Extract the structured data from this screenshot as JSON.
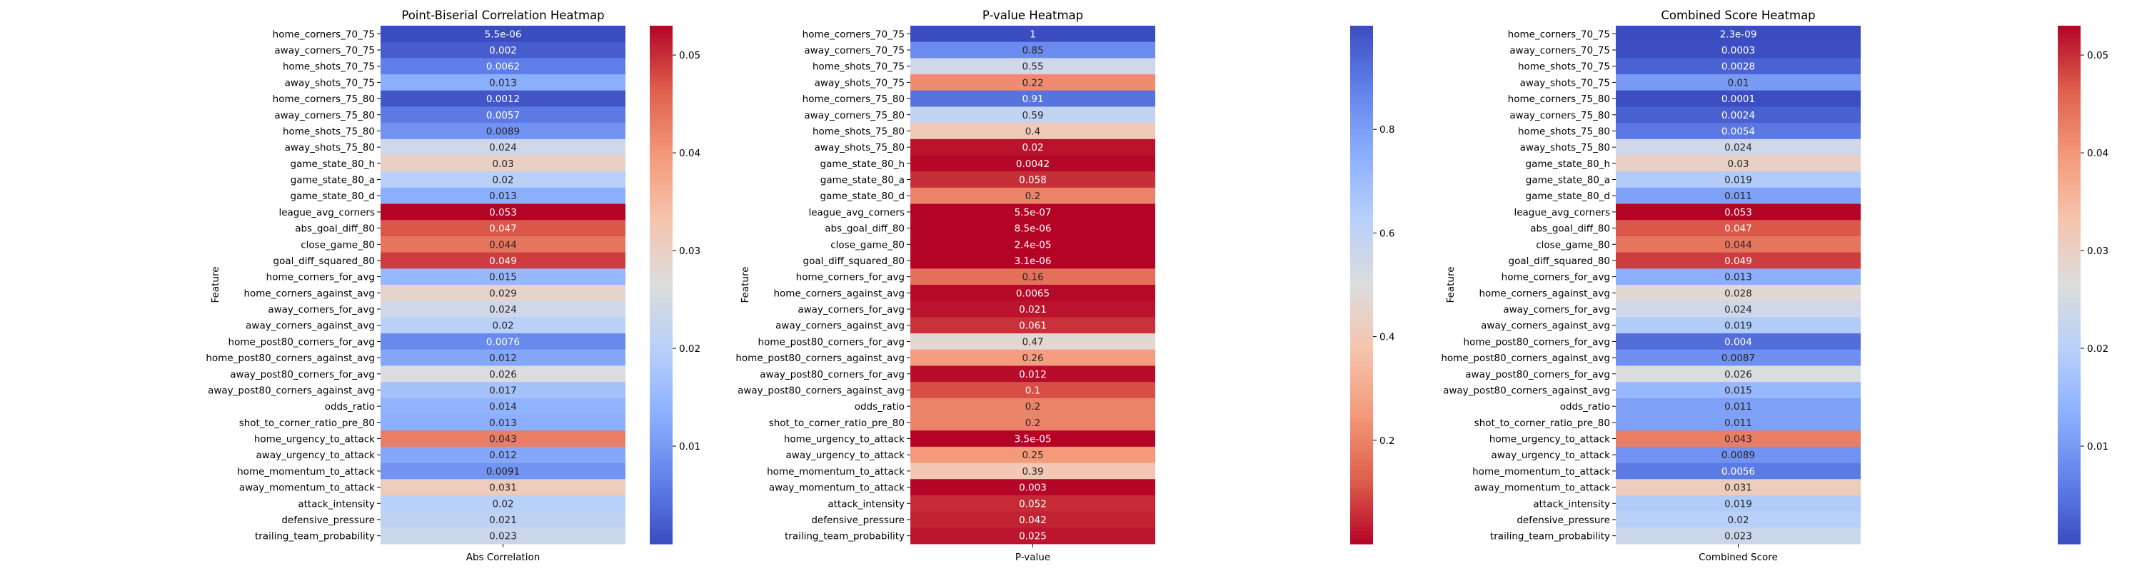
{
  "chart_data": [
    {
      "type": "heatmap",
      "title": "Point-Biserial Correlation Heatmap",
      "xlabel": "Abs Correlation",
      "ylabel": "Feature",
      "colormap": "coolwarm",
      "vmin": 5.5e-06,
      "vmax": 0.053,
      "colorbar_ticks": [
        "0.01",
        "0.02",
        "0.03",
        "0.04",
        "0.05"
      ],
      "colorbar_tick_values": [
        0.01,
        0.02,
        0.03,
        0.04,
        0.05
      ],
      "values": [
        "5.5e-06",
        "0.002",
        "0.0062",
        "0.013",
        "0.0012",
        "0.0057",
        "0.0089",
        "0.024",
        "0.03",
        "0.02",
        "0.013",
        "0.053",
        "0.047",
        "0.044",
        "0.049",
        "0.015",
        "0.029",
        "0.024",
        "0.02",
        "0.0076",
        "0.012",
        "0.026",
        "0.017",
        "0.014",
        "0.013",
        "0.043",
        "0.012",
        "0.0091",
        "0.031",
        "0.02",
        "0.021",
        "0.023"
      ]
    },
    {
      "type": "heatmap",
      "title": "P-value Heatmap",
      "xlabel": "P-value",
      "ylabel": "Feature",
      "colormap": "coolwarm_r",
      "vmin": 5.5e-07,
      "vmax": 1,
      "colorbar_ticks": [
        "0.2",
        "0.4",
        "0.6",
        "0.8"
      ],
      "colorbar_tick_values": [
        0.2,
        0.4,
        0.6,
        0.8
      ],
      "values": [
        "1",
        "0.85",
        "0.55",
        "0.22",
        "0.91",
        "0.59",
        "0.4",
        "0.02",
        "0.0042",
        "0.058",
        "0.2",
        "5.5e-07",
        "8.5e-06",
        "2.4e-05",
        "3.1e-06",
        "0.16",
        "0.0065",
        "0.021",
        "0.061",
        "0.47",
        "0.26",
        "0.012",
        "0.1",
        "0.2",
        "0.2",
        "3.5e-05",
        "0.25",
        "0.39",
        "0.003",
        "0.052",
        "0.042",
        "0.025"
      ]
    },
    {
      "type": "heatmap",
      "title": "Combined Score Heatmap",
      "xlabel": "Combined Score",
      "ylabel": "Feature",
      "colormap": "coolwarm",
      "vmin": 2.3e-09,
      "vmax": 0.053,
      "colorbar_ticks": [
        "0.01",
        "0.02",
        "0.03",
        "0.04",
        "0.05"
      ],
      "colorbar_tick_values": [
        0.01,
        0.02,
        0.03,
        0.04,
        0.05
      ],
      "values": [
        "2.3e-09",
        "0.0003",
        "0.0028",
        "0.01",
        "0.0001",
        "0.0024",
        "0.0054",
        "0.024",
        "0.03",
        "0.019",
        "0.011",
        "0.053",
        "0.047",
        "0.044",
        "0.049",
        "0.013",
        "0.028",
        "0.024",
        "0.019",
        "0.004",
        "0.0087",
        "0.026",
        "0.015",
        "0.011",
        "0.011",
        "0.043",
        "0.0089",
        "0.0056",
        "0.031",
        "0.019",
        "0.02",
        "0.023"
      ]
    }
  ],
  "features": [
    "home_corners_70_75",
    "away_corners_70_75",
    "home_shots_70_75",
    "away_shots_70_75",
    "home_corners_75_80",
    "away_corners_75_80",
    "home_shots_75_80",
    "away_shots_75_80",
    "game_state_80_h",
    "game_state_80_a",
    "game_state_80_d",
    "league_avg_corners",
    "abs_goal_diff_80",
    "close_game_80",
    "goal_diff_squared_80",
    "home_corners_for_avg",
    "home_corners_against_avg",
    "away_corners_for_avg",
    "away_corners_against_avg",
    "home_post80_corners_for_avg",
    "home_post80_corners_against_avg",
    "away_post80_corners_for_avg",
    "away_post80_corners_against_avg",
    "odds_ratio",
    "shot_to_corner_ratio_pre_80",
    "home_urgency_to_attack",
    "away_urgency_to_attack",
    "home_momentum_to_attack",
    "away_momentum_to_attack",
    "attack_intensity",
    "defensive_pressure",
    "trailing_team_probability"
  ]
}
